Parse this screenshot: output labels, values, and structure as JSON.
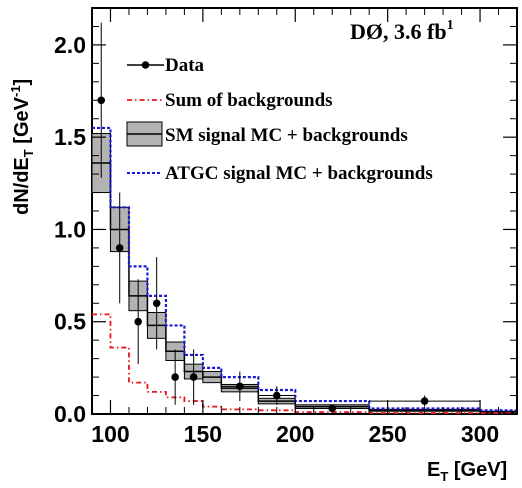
{
  "chart_data": {
    "type": "line",
    "experiment_label": "DØ, 3.6 fb",
    "luminosity_superscript": "1",
    "xlabel": {
      "main": "E",
      "sub": "T",
      "unit": " [GeV]"
    },
    "ylabel": {
      "main": "dN/dE",
      "sub": "T",
      "unit_open": " [GeV",
      "unit_sup": "-1",
      "unit_close": "]"
    },
    "xlim": [
      90,
      320
    ],
    "ylim": [
      0,
      2.2
    ],
    "x_ticks": [
      100,
      150,
      200,
      250,
      300
    ],
    "x_tick_labels": [
      "100",
      "150",
      "200",
      "250",
      "300"
    ],
    "y_ticks": [
      0,
      0.5,
      1.0,
      1.5,
      2.0
    ],
    "y_tick_labels": [
      "0.0",
      "0.5",
      "1.0",
      "1.5",
      "2.0"
    ],
    "bin_edges": [
      90,
      100,
      110,
      120,
      130,
      140,
      150,
      160,
      180,
      200,
      240,
      300,
      320
    ],
    "legend": [
      {
        "label": "Data",
        "style": "marker"
      },
      {
        "label": "Sum of backgrounds",
        "style": "red-dashdot"
      },
      {
        "label": "SM signal MC + backgrounds",
        "style": "grey-band"
      },
      {
        "label": "ATGC signal MC + backgrounds",
        "style": "blue-dotted"
      }
    ],
    "series": [
      {
        "name": "Data",
        "x": [
          95,
          105,
          115,
          125,
          135,
          145,
          170,
          190,
          220,
          270
        ],
        "y": [
          1.7,
          0.9,
          0.5,
          0.6,
          0.2,
          0.2,
          0.15,
          0.1,
          0.03,
          0.07
        ],
        "yerr": [
          0.42,
          0.3,
          0.23,
          0.25,
          0.15,
          0.15,
          0.08,
          0.05,
          0.02,
          0.03
        ]
      },
      {
        "name": "Sum of backgrounds",
        "values": [
          0.54,
          0.36,
          0.17,
          0.12,
          0.09,
          0.07,
          0.04,
          0.025,
          0.02,
          0.01,
          0.005,
          0.005
        ]
      },
      {
        "name": "SM signal MC + backgrounds",
        "values": [
          1.36,
          1.0,
          0.64,
          0.48,
          0.34,
          0.23,
          0.2,
          0.14,
          0.07,
          0.04,
          0.02,
          0.01
        ],
        "band_half_width": [
          0.16,
          0.12,
          0.08,
          0.07,
          0.05,
          0.04,
          0.03,
          0.02,
          0.015,
          0.01,
          0.005,
          0.005
        ]
      },
      {
        "name": "ATGC signal MC + backgrounds",
        "values": [
          1.55,
          1.12,
          0.8,
          0.64,
          0.48,
          0.32,
          0.25,
          0.2,
          0.13,
          0.07,
          0.03,
          0.02
        ]
      }
    ],
    "colors": {
      "data": "#000000",
      "background": "#e8161b",
      "sm_band": "#b3b3b3",
      "sm_line": "#000000",
      "atgc": "#1a1ad6"
    }
  }
}
